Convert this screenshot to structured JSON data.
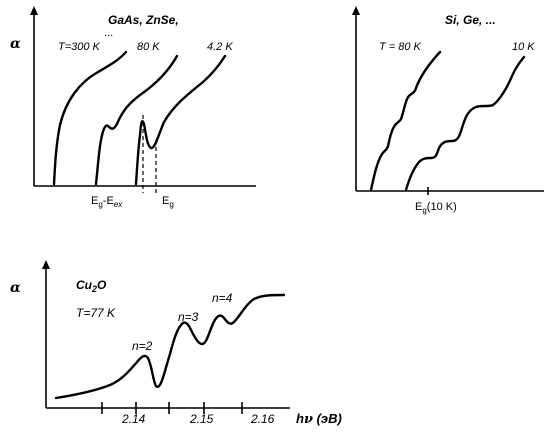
{
  "panels": {
    "top_left": {
      "alpha": "α",
      "materials": "GaAs, ZnSe,",
      "ellipsis": "...",
      "temperatures": [
        "T=300 K",
        "80 K",
        "4.2 K"
      ],
      "xlabel_eg_prefix": "E",
      "xlabel_eg_sub1": "g",
      "xlabel_minus": "-E",
      "xlabel_ex_sub": "ex",
      "xlabel_eg2": "E",
      "xlabel_eg2_sub": "g"
    },
    "top_right": {
      "alpha_marker": "",
      "materials": "Si, Ge, ...",
      "temperatures": [
        "T = 80 K",
        "10 K"
      ],
      "xlabel_prefix": "E",
      "xlabel_sub": "g",
      "xlabel_suffix": "(10 K)"
    },
    "bottom": {
      "alpha": "α",
      "material_main": "Cu",
      "material_sub": "2",
      "material_end": "O",
      "temperature": "T=77 K",
      "peaks": [
        "n=2",
        "n=3",
        "n=4"
      ],
      "ticks": [
        "2.14",
        "2.15",
        "2.16"
      ],
      "xlabel_h": "h",
      "xlabel_nu": "ν",
      "xlabel_unit": " (эВ)"
    }
  }
}
